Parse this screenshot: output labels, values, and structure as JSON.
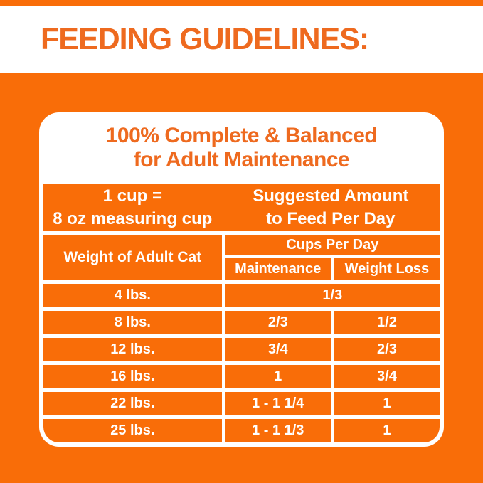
{
  "header": {
    "title": "FEEDING GUIDELINES:"
  },
  "card": {
    "heading_line1": "100% Complete & Balanced",
    "heading_line2": "for Adult Maintenance",
    "cup_info": {
      "line1": "1 cup =",
      "line2": "8 oz measuring cup"
    },
    "suggested": {
      "line1": "Suggested Amount",
      "line2": "to Feed Per Day"
    },
    "table": {
      "weight_header": "Weight of Adult Cat",
      "cups_header": "Cups Per Day",
      "columns": [
        "Maintenance",
        "Weight Loss"
      ],
      "rows": [
        {
          "weight": "4 lbs.",
          "values": [
            "1/3"
          ]
        },
        {
          "weight": "8 lbs.",
          "values": [
            "2/3",
            "1/2"
          ]
        },
        {
          "weight": "12 lbs.",
          "values": [
            "3/4",
            "2/3"
          ]
        },
        {
          "weight": "16 lbs.",
          "values": [
            "1",
            "3/4"
          ]
        },
        {
          "weight": "22 lbs.",
          "values": [
            "1 - 1 1/4",
            "1"
          ]
        },
        {
          "weight": "25 lbs.",
          "values": [
            "1 - 1 1/3",
            "1"
          ]
        }
      ]
    }
  },
  "colors": {
    "orange_background": "#F96D08",
    "orange_text": "#EE6A1F",
    "text_on_orange": "#FFFFFF"
  }
}
